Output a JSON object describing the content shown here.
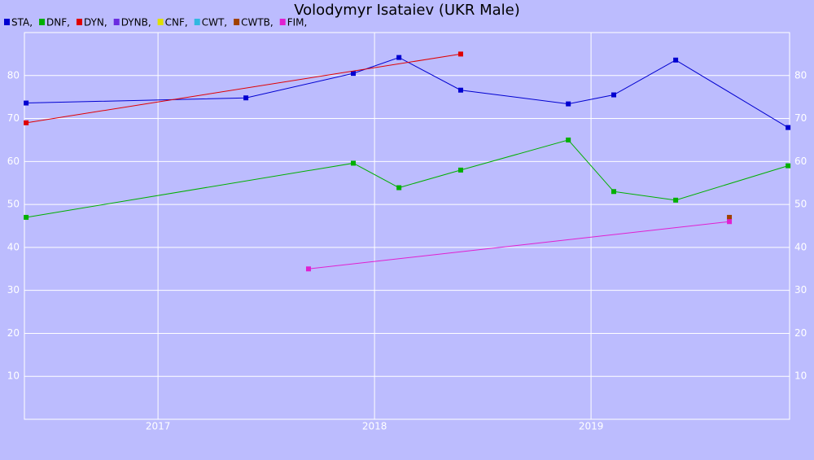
{
  "chart_data": {
    "type": "line",
    "title": "Volodymyr Isataiev (UKR Male)",
    "xlim": [
      2016.383,
      2019.917
    ],
    "xticks": [
      2017,
      2018,
      2019
    ],
    "ylim": [
      0,
      90
    ],
    "yticks": [
      10,
      20,
      30,
      40,
      50,
      60,
      70,
      80
    ],
    "grid": true,
    "series": [
      {
        "name": "STA,",
        "color": "#0000d0",
        "x": [
          2016.391,
          2017.406,
          2017.902,
          2018.113,
          2018.398,
          2018.895,
          2019.105,
          2019.391,
          2019.91
        ],
        "values": [
          73.6,
          74.8,
          80.5,
          84.2,
          76.6,
          73.4,
          75.5,
          83.6,
          67.9
        ]
      },
      {
        "name": "DNF,",
        "color": "#00b000",
        "x": [
          2016.391,
          2017.902,
          2018.113,
          2018.398,
          2018.895,
          2019.105,
          2019.391,
          2019.91
        ],
        "values": [
          47,
          59.6,
          53.9,
          58,
          65,
          53,
          51,
          59
        ]
      },
      {
        "name": "DYN,",
        "color": "#e00000",
        "x": [
          2016.391,
          2018.398
        ],
        "values": [
          69,
          85
        ]
      },
      {
        "name": "DYNB,",
        "color": "#6a2be0",
        "x": [],
        "values": []
      },
      {
        "name": "CNF,",
        "color": "#e0e000",
        "x": [],
        "values": []
      },
      {
        "name": "CWT,",
        "color": "#30b8e0",
        "x": [],
        "values": []
      },
      {
        "name": "CWTB,",
        "color": "#a04000",
        "x": [
          2019.639
        ],
        "values": [
          47
        ]
      },
      {
        "name": "FIM,",
        "color": "#e020d0",
        "x": [
          2017.695,
          2019.639
        ],
        "values": [
          35,
          46
        ]
      }
    ]
  }
}
